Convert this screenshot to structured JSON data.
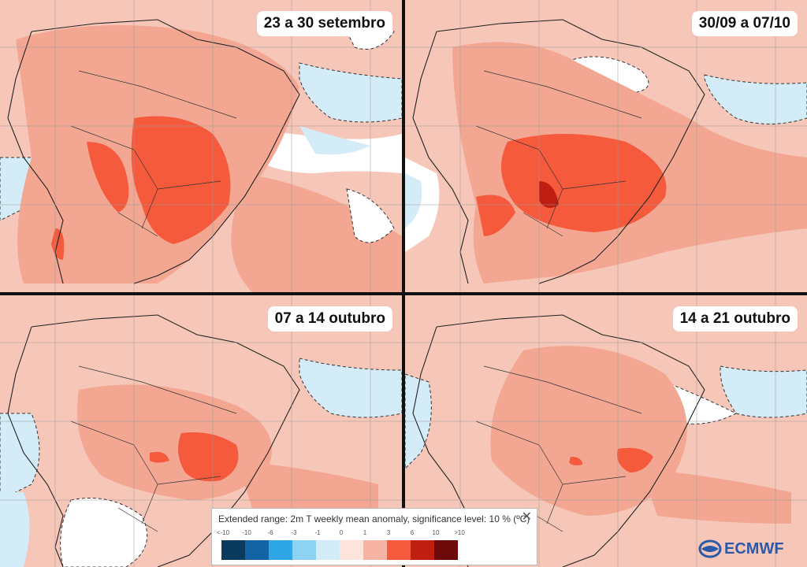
{
  "panels": [
    {
      "label": "23 a 30 setembro"
    },
    {
      "label": "30/09 a 07/10"
    },
    {
      "label": "07 a 14 outubro"
    },
    {
      "label": "14 a 21 outubro"
    }
  ],
  "legend": {
    "title": "Extended range: 2m T weekly mean anomaly, significance level: 10 % (ºC)",
    "ticks": [
      "<-10",
      "-10",
      "-6",
      "-3",
      "-1",
      "0",
      "1",
      "3",
      "6",
      "10",
      ">10"
    ],
    "colors": [
      "#0a3a5e",
      "#1464a5",
      "#2fa6e6",
      "#8ed2f2",
      "#d3ecf8",
      "#fde3dc",
      "#f7b3a4",
      "#f55a3c",
      "#c01e10",
      "#6b0a08"
    ]
  },
  "logo": {
    "text": "ECMWF"
  },
  "colors": {
    "warm_light": "#f6c6b8",
    "warm_mid": "#f3a793",
    "warm_strong": "#f55a3c",
    "neutral": "#ffffff",
    "cool_light": "#d3ecf8",
    "border": "#222222"
  }
}
